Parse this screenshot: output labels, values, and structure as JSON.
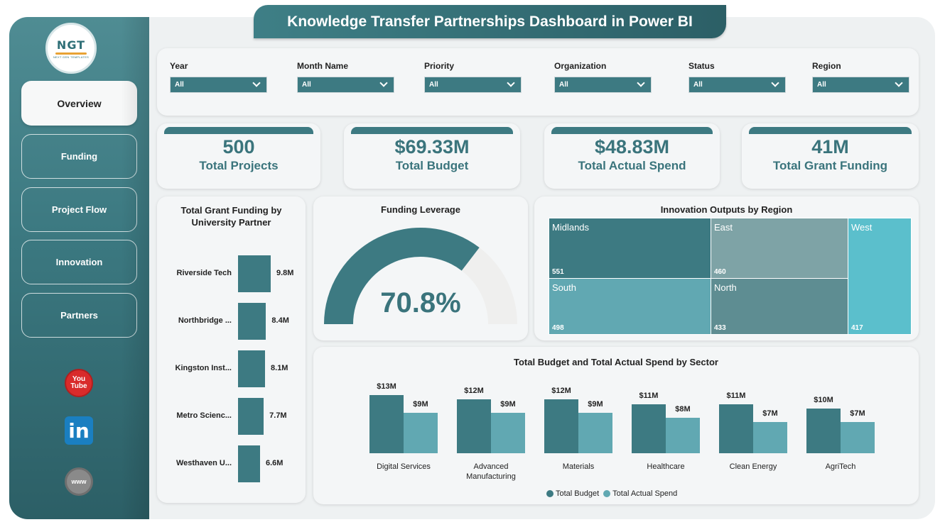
{
  "title": "Knowledge Transfer Partnerships Dashboard in Power BI",
  "logo": {
    "text": "NGT",
    "subtext": "NEXT GEN TEMPLATES"
  },
  "nav": [
    {
      "label": "Overview",
      "active": true
    },
    {
      "label": "Funding",
      "active": false
    },
    {
      "label": "Project Flow",
      "active": false
    },
    {
      "label": "Innovation",
      "active": false
    },
    {
      "label": "Partners",
      "active": false
    }
  ],
  "social": {
    "youtube_line1": "You",
    "youtube_line2": "Tube",
    "linkedin": "in",
    "web": "www"
  },
  "filters": [
    {
      "label": "Year",
      "value": "All"
    },
    {
      "label": "Month Name",
      "value": "All"
    },
    {
      "label": "Priority",
      "value": "All"
    },
    {
      "label": "Organization",
      "value": "All"
    },
    {
      "label": "Status",
      "value": "All"
    },
    {
      "label": "Region",
      "value": "All"
    }
  ],
  "kpis": [
    {
      "value": "500",
      "label": "Total Projects"
    },
    {
      "value": "$69.33M",
      "label": "Total Budget"
    },
    {
      "value": "$48.83M",
      "label": "Total Actual Spend"
    },
    {
      "value": "41M",
      "label": "Total Grant Funding"
    }
  ],
  "university_chart": {
    "title": "Total Grant Funding by University Partner",
    "categories": [
      "Riverside Tech",
      "Northbridge ...",
      "Kingston Inst...",
      "Metro Scienc...",
      "Westhaven U..."
    ],
    "values": [
      9.8,
      8.4,
      8.1,
      7.7,
      6.6
    ],
    "labels": [
      "9.8M",
      "8.4M",
      "8.1M",
      "7.7M",
      "6.6M"
    ]
  },
  "gauge": {
    "title": "Funding Leverage",
    "value": 70.8,
    "label": "70.8%",
    "color_fill": "#3d7a82",
    "color_track": "#efefee"
  },
  "treemap": {
    "title": "Innovation Outputs by Region",
    "items": [
      {
        "name": "Midlands",
        "value": "551",
        "color": "#3d7a82"
      },
      {
        "name": "East",
        "value": "460",
        "color": "#7ea3a6"
      },
      {
        "name": "West",
        "value": "417",
        "color": "#5bbfcc"
      },
      {
        "name": "South",
        "value": "498",
        "color": "#61a8b2"
      },
      {
        "name": "North",
        "value": "433",
        "color": "#5e8d92"
      }
    ]
  },
  "chart_data": {
    "type": "bar",
    "title": "Total Budget and Total Actual Spend by Sector",
    "categories": [
      "Digital Services",
      "Advanced Manufacturing",
      "Materials",
      "Healthcare",
      "Clean Energy",
      "AgriTech"
    ],
    "category_labels": [
      [
        "Digital Services"
      ],
      [
        "Advanced",
        "Manufacturing"
      ],
      [
        "Materials"
      ],
      [
        "Healthcare"
      ],
      [
        "Clean Energy"
      ],
      [
        "AgriTech"
      ]
    ],
    "series": [
      {
        "name": "Total Budget",
        "color": "#3d7a82",
        "values": [
          13,
          12,
          12,
          11,
          11,
          10
        ],
        "labels": [
          "$13M",
          "$12M",
          "$12M",
          "$11M",
          "$11M",
          "$10M"
        ]
      },
      {
        "name": "Total Actual Spend",
        "color": "#61a8b2",
        "values": [
          9,
          9,
          9,
          8,
          7,
          7
        ],
        "labels": [
          "$9M",
          "$9M",
          "$9M",
          "$8M",
          "$7M",
          "$7M"
        ]
      }
    ],
    "legend": "bottom-center"
  }
}
